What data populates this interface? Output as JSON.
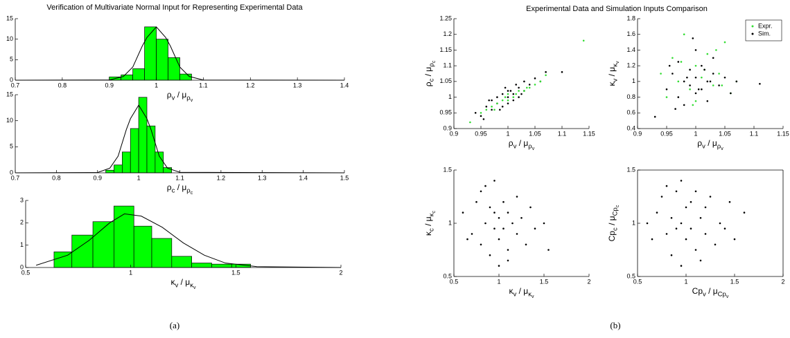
{
  "panels": [
    {
      "title": "Verification of Multivariate Normal Input for Representing Experimental Data",
      "caption": "(a)"
    },
    {
      "title": "Experimental Data and Simulation Inputs Comparison",
      "caption": "(b)"
    }
  ],
  "chart_data": [
    {
      "type": "histogram",
      "color": "#00ff00",
      "bins": [
        0.9,
        0.925,
        0.95,
        0.975,
        1.0,
        1.025,
        1.05,
        1.075
      ],
      "counts": [
        0.8,
        1.3,
        2.8,
        13,
        10,
        5.5,
        1.5
      ],
      "fit": {
        "color": "#000000",
        "x": [
          0.7,
          0.9,
          0.93,
          0.95,
          0.97,
          0.98,
          1.0,
          1.02,
          1.03,
          1.05,
          1.07,
          1.1,
          1.4
        ],
        "y": [
          0,
          0.05,
          0.9,
          3.2,
          8.3,
          10.4,
          13,
          10.4,
          8.3,
          3.2,
          0.9,
          0.05,
          0
        ]
      },
      "xlim": [
        0.7,
        1.4
      ],
      "xticks": [
        0.7,
        0.8,
        0.9,
        1,
        1.1,
        1.2,
        1.3,
        1.4
      ],
      "ylim": [
        0,
        15
      ],
      "yticks": [
        0,
        5,
        10,
        15
      ],
      "xlabel": [
        [
          "ρ",
          0
        ],
        [
          "v",
          1
        ],
        [
          " / μ",
          0
        ],
        [
          "ρ",
          1
        ],
        [
          "v",
          2
        ]
      ]
    },
    {
      "type": "histogram",
      "color": "#00ff00",
      "bins": [
        0.92,
        0.94,
        0.96,
        0.98,
        1.0,
        1.02,
        1.04,
        1.06,
        1.08
      ],
      "counts": [
        0.5,
        1.5,
        4,
        8.5,
        14.5,
        9,
        4,
        1
      ],
      "fit": {
        "color": "#000000",
        "x": [
          0.7,
          0.9,
          0.93,
          0.95,
          0.97,
          0.98,
          1.0,
          1.02,
          1.03,
          1.05,
          1.07,
          1.1,
          1.5
        ],
        "y": [
          0,
          0.05,
          0.9,
          3.2,
          8.3,
          10.4,
          13,
          10.4,
          8.3,
          3.2,
          0.9,
          0.1,
          0
        ]
      },
      "xlim": [
        0.7,
        1.5
      ],
      "xticks": [
        0.7,
        0.8,
        0.9,
        1,
        1.1,
        1.2,
        1.3,
        1.4,
        1.5
      ],
      "ylim": [
        0,
        15
      ],
      "yticks": [
        0,
        5,
        10,
        15
      ],
      "xlabel": [
        [
          "ρ",
          0
        ],
        [
          "c",
          1
        ],
        [
          " / μ",
          0
        ],
        [
          "ρ",
          1
        ],
        [
          "c",
          2
        ]
      ]
    },
    {
      "type": "histogram",
      "color": "#00ff00",
      "bins": [
        0.635,
        0.72,
        0.82,
        0.92,
        1.015,
        1.1,
        1.195,
        1.29,
        1.385,
        1.48,
        1.57
      ],
      "counts": [
        0.7,
        1.45,
        2.05,
        2.75,
        1.85,
        1.3,
        0.5,
        0.2,
        0.15,
        0.15
      ],
      "fit": {
        "color": "#000000",
        "x": [
          0.55,
          0.7,
          0.8,
          0.9,
          0.97,
          1.05,
          1.15,
          1.25,
          1.35,
          1.45,
          1.6,
          2
        ],
        "y": [
          0.1,
          0.55,
          1.2,
          2.0,
          2.4,
          2.3,
          1.8,
          1.1,
          0.55,
          0.2,
          0.04,
          0
        ]
      },
      "xlim": [
        0.5,
        2
      ],
      "xticks": [
        0.5,
        1,
        1.5,
        2
      ],
      "ylim": [
        0,
        3
      ],
      "yticks": [
        0,
        1,
        2,
        3
      ],
      "xlabel": [
        [
          "κ",
          0
        ],
        [
          "v",
          1
        ],
        [
          " / μ",
          0
        ],
        [
          "κ",
          1
        ],
        [
          "v",
          2
        ]
      ]
    },
    {
      "type": "scatter",
      "series": [
        {
          "name": "Sim.",
          "color": "#000000",
          "x": [
            0.94,
            0.95,
            0.96,
            0.97,
            0.97,
            0.98,
            0.98,
            0.99,
            0.99,
            1.0,
            1.0,
            1.0,
            1.01,
            1.01,
            1.02,
            1.02,
            1.03,
            1.03,
            1.04,
            1.05,
            1.06,
            1.07,
            0.955,
            0.965,
            0.985,
            0.995,
            1.005,
            1.015,
            1.025,
            1.1
          ],
          "values": [
            0.95,
            0.94,
            0.97,
            0.96,
            0.99,
            0.98,
            1.0,
            0.97,
            1.01,
            1.0,
            0.98,
            1.02,
            1.01,
            0.99,
            1.03,
            1.0,
            1.02,
            1.05,
            1.04,
            1.06,
            1.05,
            1.08,
            0.93,
            0.99,
            0.96,
            1.03,
            1.02,
            1.04,
            1.01,
            1.08
          ]
        },
        {
          "name": "Expr.",
          "color": "#33dd33",
          "x": [
            0.93,
            0.95,
            0.96,
            0.97,
            0.98,
            0.99,
            1.0,
            1.0,
            1.01,
            1.02,
            1.03,
            1.04,
            1.05,
            1.06,
            1.07,
            1.14,
            0.975,
            0.995,
            1.015,
            1.035
          ],
          "values": [
            0.92,
            0.95,
            0.96,
            0.97,
            0.98,
            0.99,
            0.99,
            1.01,
            1.0,
            1.02,
            1.02,
            1.03,
            1.04,
            1.05,
            1.07,
            1.18,
            0.96,
            1.0,
            1.01,
            1.03
          ]
        }
      ],
      "xlim": [
        0.9,
        1.15
      ],
      "xticks": [
        0.9,
        0.95,
        1,
        1.05,
        1.1,
        1.15
      ],
      "ylim": [
        0.9,
        1.25
      ],
      "yticks": [
        0.9,
        0.95,
        1,
        1.05,
        1.1,
        1.15,
        1.2,
        1.25
      ],
      "xlabel": [
        [
          "ρ",
          0
        ],
        [
          "v",
          1
        ],
        [
          " / μ",
          0
        ],
        [
          "ρ",
          1
        ],
        [
          "v",
          2
        ]
      ],
      "ylabel": [
        [
          "ρ",
          0
        ],
        [
          "c",
          1
        ],
        [
          " / μ",
          0
        ],
        [
          "ρ",
          1
        ],
        [
          "c",
          2
        ]
      ]
    },
    {
      "type": "scatter",
      "legend": "upper right",
      "series": [
        {
          "name": "Expr.",
          "color": "#33dd33",
          "x": [
            0.94,
            0.95,
            0.96,
            0.97,
            0.98,
            0.99,
            1.0,
            1.0,
            1.01,
            1.02,
            1.03,
            1.04,
            1.05,
            1.06,
            1.07,
            0.975,
            0.995,
            1.015,
            1.035,
            1.045
          ],
          "values": [
            1.1,
            0.8,
            1.3,
            1.0,
            1.6,
            0.9,
            1.2,
            0.75,
            1.05,
            1.35,
            0.95,
            1.1,
            1.5,
            0.85,
            1.0,
            1.25,
            0.7,
            1.15,
            1.4,
            0.95
          ]
        },
        {
          "name": "Sim.",
          "color": "#000000",
          "x": [
            0.93,
            0.95,
            0.96,
            0.97,
            0.97,
            0.98,
            0.98,
            0.99,
            0.99,
            1.0,
            1.0,
            1.0,
            1.01,
            1.01,
            1.02,
            1.02,
            1.03,
            1.03,
            1.04,
            1.05,
            1.06,
            1.07,
            0.955,
            0.965,
            0.985,
            0.995,
            1.005,
            1.015,
            1.025,
            1.11
          ],
          "values": [
            0.55,
            0.9,
            1.1,
            0.8,
            1.25,
            1.0,
            0.7,
            1.15,
            0.95,
            1.05,
            0.85,
            1.4,
            1.2,
            0.9,
            1.0,
            0.75,
            1.3,
            1.1,
            0.95,
            1.05,
            0.85,
            1.0,
            1.2,
            0.65,
            1.05,
            1.55,
            0.9,
            1.15,
            1.0,
            0.97
          ]
        }
      ],
      "xlim": [
        0.9,
        1.15
      ],
      "xticks": [
        0.9,
        0.95,
        1,
        1.05,
        1.1,
        1.15
      ],
      "ylim": [
        0.4,
        1.8
      ],
      "yticks": [
        0.4,
        0.6,
        0.8,
        1,
        1.2,
        1.4,
        1.6,
        1.8
      ],
      "xlabel": [
        [
          "ρ",
          0
        ],
        [
          "v",
          1
        ],
        [
          " / μ",
          0
        ],
        [
          "ρ",
          1
        ],
        [
          "v",
          2
        ]
      ],
      "ylabel": [
        [
          "κ",
          0
        ],
        [
          "v",
          1
        ],
        [
          " / μ",
          0
        ],
        [
          "κ",
          1
        ],
        [
          "v",
          2
        ]
      ]
    },
    {
      "type": "scatter",
      "series": [
        {
          "name": "Sim.",
          "color": "#000000",
          "x": [
            0.6,
            0.7,
            0.75,
            0.8,
            0.8,
            0.85,
            0.9,
            0.9,
            0.95,
            0.95,
            1.0,
            1.0,
            1.0,
            1.05,
            1.05,
            1.1,
            1.1,
            1.15,
            1.2,
            1.2,
            1.25,
            1.3,
            1.35,
            1.4,
            1.5,
            0.65,
            0.85,
            0.95,
            1.1,
            1.55
          ],
          "values": [
            1.1,
            0.9,
            1.2,
            0.8,
            1.3,
            1.0,
            0.7,
            1.15,
            0.95,
            1.4,
            1.05,
            0.85,
            0.6,
            1.2,
            0.95,
            1.1,
            0.75,
            1.0,
            1.25,
            0.9,
            1.05,
            0.8,
            1.15,
            0.95,
            1.0,
            0.85,
            1.35,
            1.1,
            0.65,
            0.75
          ]
        }
      ],
      "xlim": [
        0.5,
        2
      ],
      "xticks": [
        0.5,
        1,
        1.5,
        2
      ],
      "ylim": [
        0.5,
        1.5
      ],
      "yticks": [
        0.5,
        1,
        1.5
      ],
      "xlabel": [
        [
          "κ",
          0
        ],
        [
          "v",
          1
        ],
        [
          " / μ",
          0
        ],
        [
          "κ",
          1
        ],
        [
          "v",
          2
        ]
      ],
      "ylabel": [
        [
          "κ",
          0
        ],
        [
          "c",
          1
        ],
        [
          " / μ",
          0
        ],
        [
          "κ",
          1
        ],
        [
          "c",
          2
        ]
      ]
    },
    {
      "type": "scatter",
      "box": true,
      "series": [
        {
          "name": "Sim.",
          "color": "#000000",
          "x": [
            0.6,
            0.65,
            0.7,
            0.75,
            0.8,
            0.8,
            0.85,
            0.85,
            0.9,
            0.9,
            0.95,
            0.95,
            1.0,
            1.0,
            1.05,
            1.05,
            1.1,
            1.1,
            1.15,
            1.2,
            1.2,
            1.25,
            1.3,
            1.35,
            1.4,
            1.45,
            1.5,
            1.6,
            0.95,
            1.15
          ],
          "values": [
            1.0,
            0.85,
            1.1,
            1.25,
            0.9,
            1.35,
            1.05,
            0.7,
            1.3,
            0.95,
            1.0,
            0.6,
            1.15,
            0.85,
            1.2,
            0.95,
            1.3,
            0.75,
            1.05,
            0.9,
            1.15,
            1.25,
            0.8,
            1.0,
            0.95,
            1.2,
            0.85,
            1.1,
            1.4,
            0.65
          ]
        }
      ],
      "xlim": [
        0.5,
        2
      ],
      "xticks": [
        0.5,
        1,
        1.5,
        2
      ],
      "ylim": [
        0.5,
        1.5
      ],
      "yticks": [
        0.5,
        1,
        1.5
      ],
      "xlabel": [
        [
          "Cp",
          0
        ],
        [
          "v",
          1
        ],
        [
          " / μ",
          0
        ],
        [
          "Cp",
          1
        ],
        [
          "v",
          2
        ]
      ],
      "ylabel": [
        [
          "Cp",
          0
        ],
        [
          "c",
          1
        ],
        [
          " / μ",
          0
        ],
        [
          "Cp",
          1
        ],
        [
          "c",
          2
        ]
      ]
    }
  ]
}
